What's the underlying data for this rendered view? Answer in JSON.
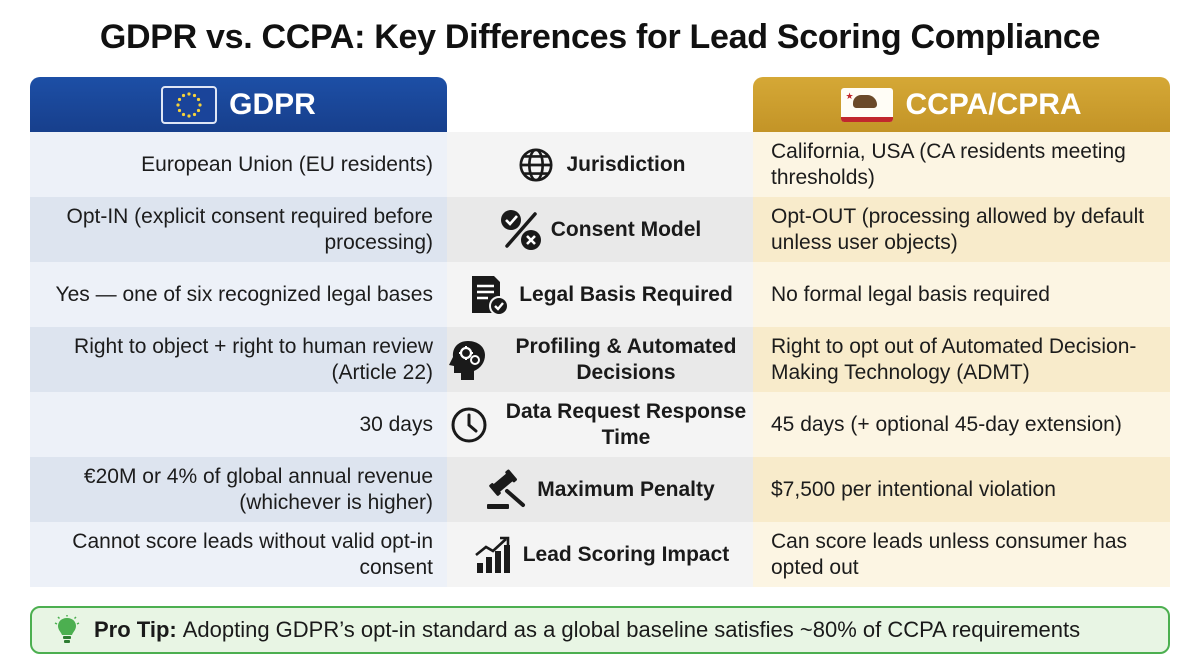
{
  "title": "GDPR vs. CCPA: Key Differences for Lead Scoring Compliance",
  "headers": {
    "left": "GDPR",
    "right": "CCPA/CPRA"
  },
  "rows": [
    {
      "left": "European Union (EU residents)",
      "center": "Jurisdiction",
      "right": "California, USA (CA residents meeting thresholds)",
      "icon": "globe-icon"
    },
    {
      "left": "Opt-IN (explicit consent required before processing)",
      "center": "Consent Model",
      "right": "Opt-OUT (processing allowed by default unless user objects)",
      "icon": "consent-icon"
    },
    {
      "left": "Yes — one of six recognized legal bases",
      "center": "Legal Basis Required",
      "right": "No formal legal basis required",
      "icon": "document-check-icon"
    },
    {
      "left": "Right to object + right to human review (Article 22)",
      "center": "Profiling & Automated Decisions",
      "right": "Right to opt out of Automated Decision-Making Technology (ADMT)",
      "icon": "head-gears-icon"
    },
    {
      "left": "30 days",
      "center": "Data Request Response Time",
      "right": "45 days (+ optional 45-day extension)",
      "icon": "clock-icon"
    },
    {
      "left": "€20M or 4% of global annual revenue (whichever is higher)",
      "center": "Maximum Penalty",
      "right": "$7,500 per intentional violation",
      "icon": "gavel-icon"
    },
    {
      "left": "Cannot score leads without valid opt-in consent",
      "center": "Lead Scoring Impact",
      "right": "Can score leads unless consumer has opted out",
      "icon": "bar-chart-icon"
    }
  ],
  "protip": {
    "label": "Pro Tip:",
    "text": "Adopting GDPR’s opt-in standard as a global baseline satisfies ~80% of CCPA requirements"
  },
  "colors": {
    "gdpr_blue": "#1d4fa6",
    "ccpa_gold": "#c9992c",
    "tip_green": "#4caf50"
  }
}
